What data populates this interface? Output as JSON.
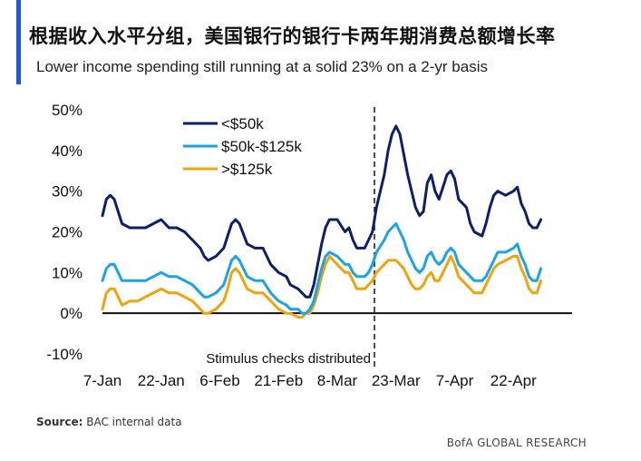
{
  "header": {
    "title": "根据收入水平分组，美国银行的银行卡两年期消费总额增长率",
    "subtitle": "Lower income spending still running at a solid 23% on a 2-yr basis"
  },
  "footer": {
    "source_label": "Source:",
    "source_text": "BAC internal data",
    "brand": "BofA GLOBAL RESEARCH"
  },
  "chart_data": {
    "type": "line",
    "title": "",
    "xlabel": "",
    "ylabel": "",
    "ylim": [
      -10,
      50
    ],
    "x_range": [
      0,
      120
    ],
    "y_ticks": [
      {
        "value": 50,
        "label": "50%"
      },
      {
        "value": 40,
        "label": "40%"
      },
      {
        "value": 30,
        "label": "30%"
      },
      {
        "value": 20,
        "label": "20%"
      },
      {
        "value": 10,
        "label": "10%"
      },
      {
        "value": 0,
        "label": "0%"
      },
      {
        "value": -10,
        "label": "-10%"
      }
    ],
    "x_ticks": [
      {
        "day": 0,
        "label": "7-Jan"
      },
      {
        "day": 15,
        "label": "22-Jan"
      },
      {
        "day": 30,
        "label": "6-Feb"
      },
      {
        "day": 45,
        "label": "21-Feb"
      },
      {
        "day": 60,
        "label": "8-Mar"
      },
      {
        "day": 75,
        "label": "23-Mar"
      },
      {
        "day": 90,
        "label": "7-Apr"
      },
      {
        "day": 105,
        "label": "22-Apr"
      }
    ],
    "annotation": {
      "day": 69.5,
      "label": "Stimulus checks distributed"
    },
    "grid": false,
    "legend_placement": "top-left",
    "series": [
      {
        "name": "<$50k",
        "color": "#0d1f6b",
        "points": [
          [
            0,
            24
          ],
          [
            1,
            28
          ],
          [
            2,
            29
          ],
          [
            3,
            28
          ],
          [
            4,
            25
          ],
          [
            5,
            22
          ],
          [
            7,
            21
          ],
          [
            9,
            21
          ],
          [
            11,
            21
          ],
          [
            13,
            22
          ],
          [
            15,
            23
          ],
          [
            17,
            21
          ],
          [
            19,
            21
          ],
          [
            21,
            20
          ],
          [
            23,
            18
          ],
          [
            25,
            16
          ],
          [
            26,
            14
          ],
          [
            27,
            13
          ],
          [
            29,
            14
          ],
          [
            31,
            16
          ],
          [
            32,
            19
          ],
          [
            33,
            22
          ],
          [
            34,
            23
          ],
          [
            35,
            22
          ],
          [
            37,
            17
          ],
          [
            39,
            16
          ],
          [
            41,
            16
          ],
          [
            43,
            12
          ],
          [
            45,
            10
          ],
          [
            47,
            9
          ],
          [
            48,
            7
          ],
          [
            50,
            6
          ],
          [
            51,
            5
          ],
          [
            52,
            4
          ],
          [
            53,
            4
          ],
          [
            54,
            7
          ],
          [
            55,
            12
          ],
          [
            56,
            17
          ],
          [
            57,
            21
          ],
          [
            58,
            23
          ],
          [
            60,
            23
          ],
          [
            62,
            20
          ],
          [
            63,
            21
          ],
          [
            64,
            18
          ],
          [
            65,
            16
          ],
          [
            67,
            16
          ],
          [
            68,
            18
          ],
          [
            69,
            20
          ],
          [
            70,
            26
          ],
          [
            72,
            34
          ],
          [
            73,
            40
          ],
          [
            74,
            44
          ],
          [
            75,
            46
          ],
          [
            76,
            44
          ],
          [
            77,
            39
          ],
          [
            78,
            34
          ],
          [
            79,
            30
          ],
          [
            80,
            26
          ],
          [
            81,
            24
          ],
          [
            82,
            25
          ],
          [
            83,
            32
          ],
          [
            84,
            34
          ],
          [
            85,
            30
          ],
          [
            86,
            28
          ],
          [
            87,
            31
          ],
          [
            88,
            34
          ],
          [
            89,
            35
          ],
          [
            90,
            33
          ],
          [
            91,
            28
          ],
          [
            93,
            26
          ],
          [
            94,
            22
          ],
          [
            95,
            20
          ],
          [
            97,
            19
          ],
          [
            98,
            22
          ],
          [
            99,
            26
          ],
          [
            100,
            29
          ],
          [
            101,
            30
          ],
          [
            103,
            29
          ],
          [
            105,
            30
          ],
          [
            106,
            31
          ],
          [
            107,
            27
          ],
          [
            108,
            25
          ],
          [
            109,
            22
          ],
          [
            110,
            21
          ],
          [
            111,
            21
          ],
          [
            112,
            23
          ]
        ]
      },
      {
        "name": "$50k-$125k",
        "color": "#19a3ea",
        "points": [
          [
            0,
            8
          ],
          [
            1,
            11
          ],
          [
            2,
            12
          ],
          [
            3,
            12
          ],
          [
            4,
            10
          ],
          [
            5,
            8
          ],
          [
            7,
            8
          ],
          [
            9,
            8
          ],
          [
            11,
            8
          ],
          [
            13,
            9
          ],
          [
            15,
            10
          ],
          [
            17,
            9
          ],
          [
            19,
            9
          ],
          [
            21,
            8
          ],
          [
            23,
            7
          ],
          [
            25,
            5
          ],
          [
            26,
            4
          ],
          [
            27,
            4
          ],
          [
            29,
            5
          ],
          [
            31,
            7
          ],
          [
            32,
            10
          ],
          [
            33,
            13
          ],
          [
            34,
            14
          ],
          [
            35,
            13
          ],
          [
            37,
            9
          ],
          [
            39,
            8
          ],
          [
            41,
            8
          ],
          [
            43,
            5
          ],
          [
            45,
            3
          ],
          [
            47,
            2
          ],
          [
            48,
            1
          ],
          [
            50,
            1
          ],
          [
            51,
            0
          ],
          [
            52,
            0
          ],
          [
            53,
            1
          ],
          [
            54,
            3
          ],
          [
            55,
            7
          ],
          [
            56,
            11
          ],
          [
            57,
            14
          ],
          [
            58,
            15
          ],
          [
            60,
            14
          ],
          [
            62,
            12
          ],
          [
            63,
            12
          ],
          [
            64,
            10
          ],
          [
            65,
            9
          ],
          [
            67,
            9
          ],
          [
            68,
            10
          ],
          [
            69,
            12
          ],
          [
            70,
            15
          ],
          [
            72,
            18
          ],
          [
            73,
            20
          ],
          [
            74,
            21
          ],
          [
            75,
            22
          ],
          [
            76,
            20
          ],
          [
            77,
            18
          ],
          [
            78,
            15
          ],
          [
            79,
            13
          ],
          [
            80,
            11
          ],
          [
            81,
            10
          ],
          [
            82,
            11
          ],
          [
            83,
            14
          ],
          [
            84,
            15
          ],
          [
            85,
            13
          ],
          [
            86,
            12
          ],
          [
            87,
            13
          ],
          [
            88,
            15
          ],
          [
            89,
            16
          ],
          [
            90,
            15
          ],
          [
            91,
            12
          ],
          [
            93,
            10
          ],
          [
            94,
            9
          ],
          [
            95,
            8
          ],
          [
            97,
            8
          ],
          [
            98,
            9
          ],
          [
            99,
            11
          ],
          [
            100,
            13
          ],
          [
            101,
            15
          ],
          [
            103,
            15
          ],
          [
            105,
            16
          ],
          [
            106,
            17
          ],
          [
            107,
            14
          ],
          [
            108,
            12
          ],
          [
            109,
            9
          ],
          [
            110,
            8
          ],
          [
            111,
            8
          ],
          [
            112,
            11
          ]
        ]
      },
      {
        "name": ">$125k",
        "color": "#f0a30a",
        "points": [
          [
            0,
            1
          ],
          [
            1,
            5
          ],
          [
            2,
            6
          ],
          [
            3,
            6
          ],
          [
            4,
            4
          ],
          [
            5,
            2
          ],
          [
            7,
            3
          ],
          [
            9,
            3
          ],
          [
            11,
            4
          ],
          [
            13,
            5
          ],
          [
            15,
            6
          ],
          [
            17,
            5
          ],
          [
            19,
            5
          ],
          [
            21,
            4
          ],
          [
            23,
            3
          ],
          [
            25,
            1
          ],
          [
            26,
            0
          ],
          [
            27,
            0
          ],
          [
            29,
            1
          ],
          [
            31,
            3
          ],
          [
            32,
            6
          ],
          [
            33,
            10
          ],
          [
            34,
            11
          ],
          [
            35,
            10
          ],
          [
            37,
            6
          ],
          [
            39,
            5
          ],
          [
            41,
            5
          ],
          [
            43,
            3
          ],
          [
            45,
            1
          ],
          [
            47,
            0
          ],
          [
            48,
            0
          ],
          [
            50,
            -1
          ],
          [
            51,
            -1
          ],
          [
            52,
            0
          ],
          [
            53,
            0
          ],
          [
            54,
            2
          ],
          [
            55,
            5
          ],
          [
            56,
            9
          ],
          [
            57,
            12
          ],
          [
            58,
            14
          ],
          [
            60,
            12
          ],
          [
            62,
            10
          ],
          [
            63,
            10
          ],
          [
            64,
            8
          ],
          [
            65,
            6
          ],
          [
            67,
            6
          ],
          [
            68,
            7
          ],
          [
            69,
            8
          ],
          [
            70,
            10
          ],
          [
            72,
            12
          ],
          [
            73,
            13
          ],
          [
            74,
            13
          ],
          [
            75,
            13
          ],
          [
            76,
            12
          ],
          [
            77,
            11
          ],
          [
            78,
            9
          ],
          [
            79,
            7
          ],
          [
            80,
            6
          ],
          [
            81,
            6
          ],
          [
            82,
            7
          ],
          [
            83,
            9
          ],
          [
            84,
            10
          ],
          [
            85,
            8
          ],
          [
            86,
            8
          ],
          [
            87,
            10
          ],
          [
            88,
            12
          ],
          [
            89,
            14
          ],
          [
            90,
            12
          ],
          [
            91,
            9
          ],
          [
            93,
            7
          ],
          [
            94,
            6
          ],
          [
            95,
            5
          ],
          [
            97,
            5
          ],
          [
            98,
            7
          ],
          [
            99,
            9
          ],
          [
            100,
            11
          ],
          [
            101,
            12
          ],
          [
            103,
            13
          ],
          [
            105,
            14
          ],
          [
            106,
            14
          ],
          [
            107,
            11
          ],
          [
            108,
            9
          ],
          [
            109,
            6
          ],
          [
            110,
            5
          ],
          [
            111,
            5
          ],
          [
            112,
            8
          ]
        ]
      }
    ]
  }
}
